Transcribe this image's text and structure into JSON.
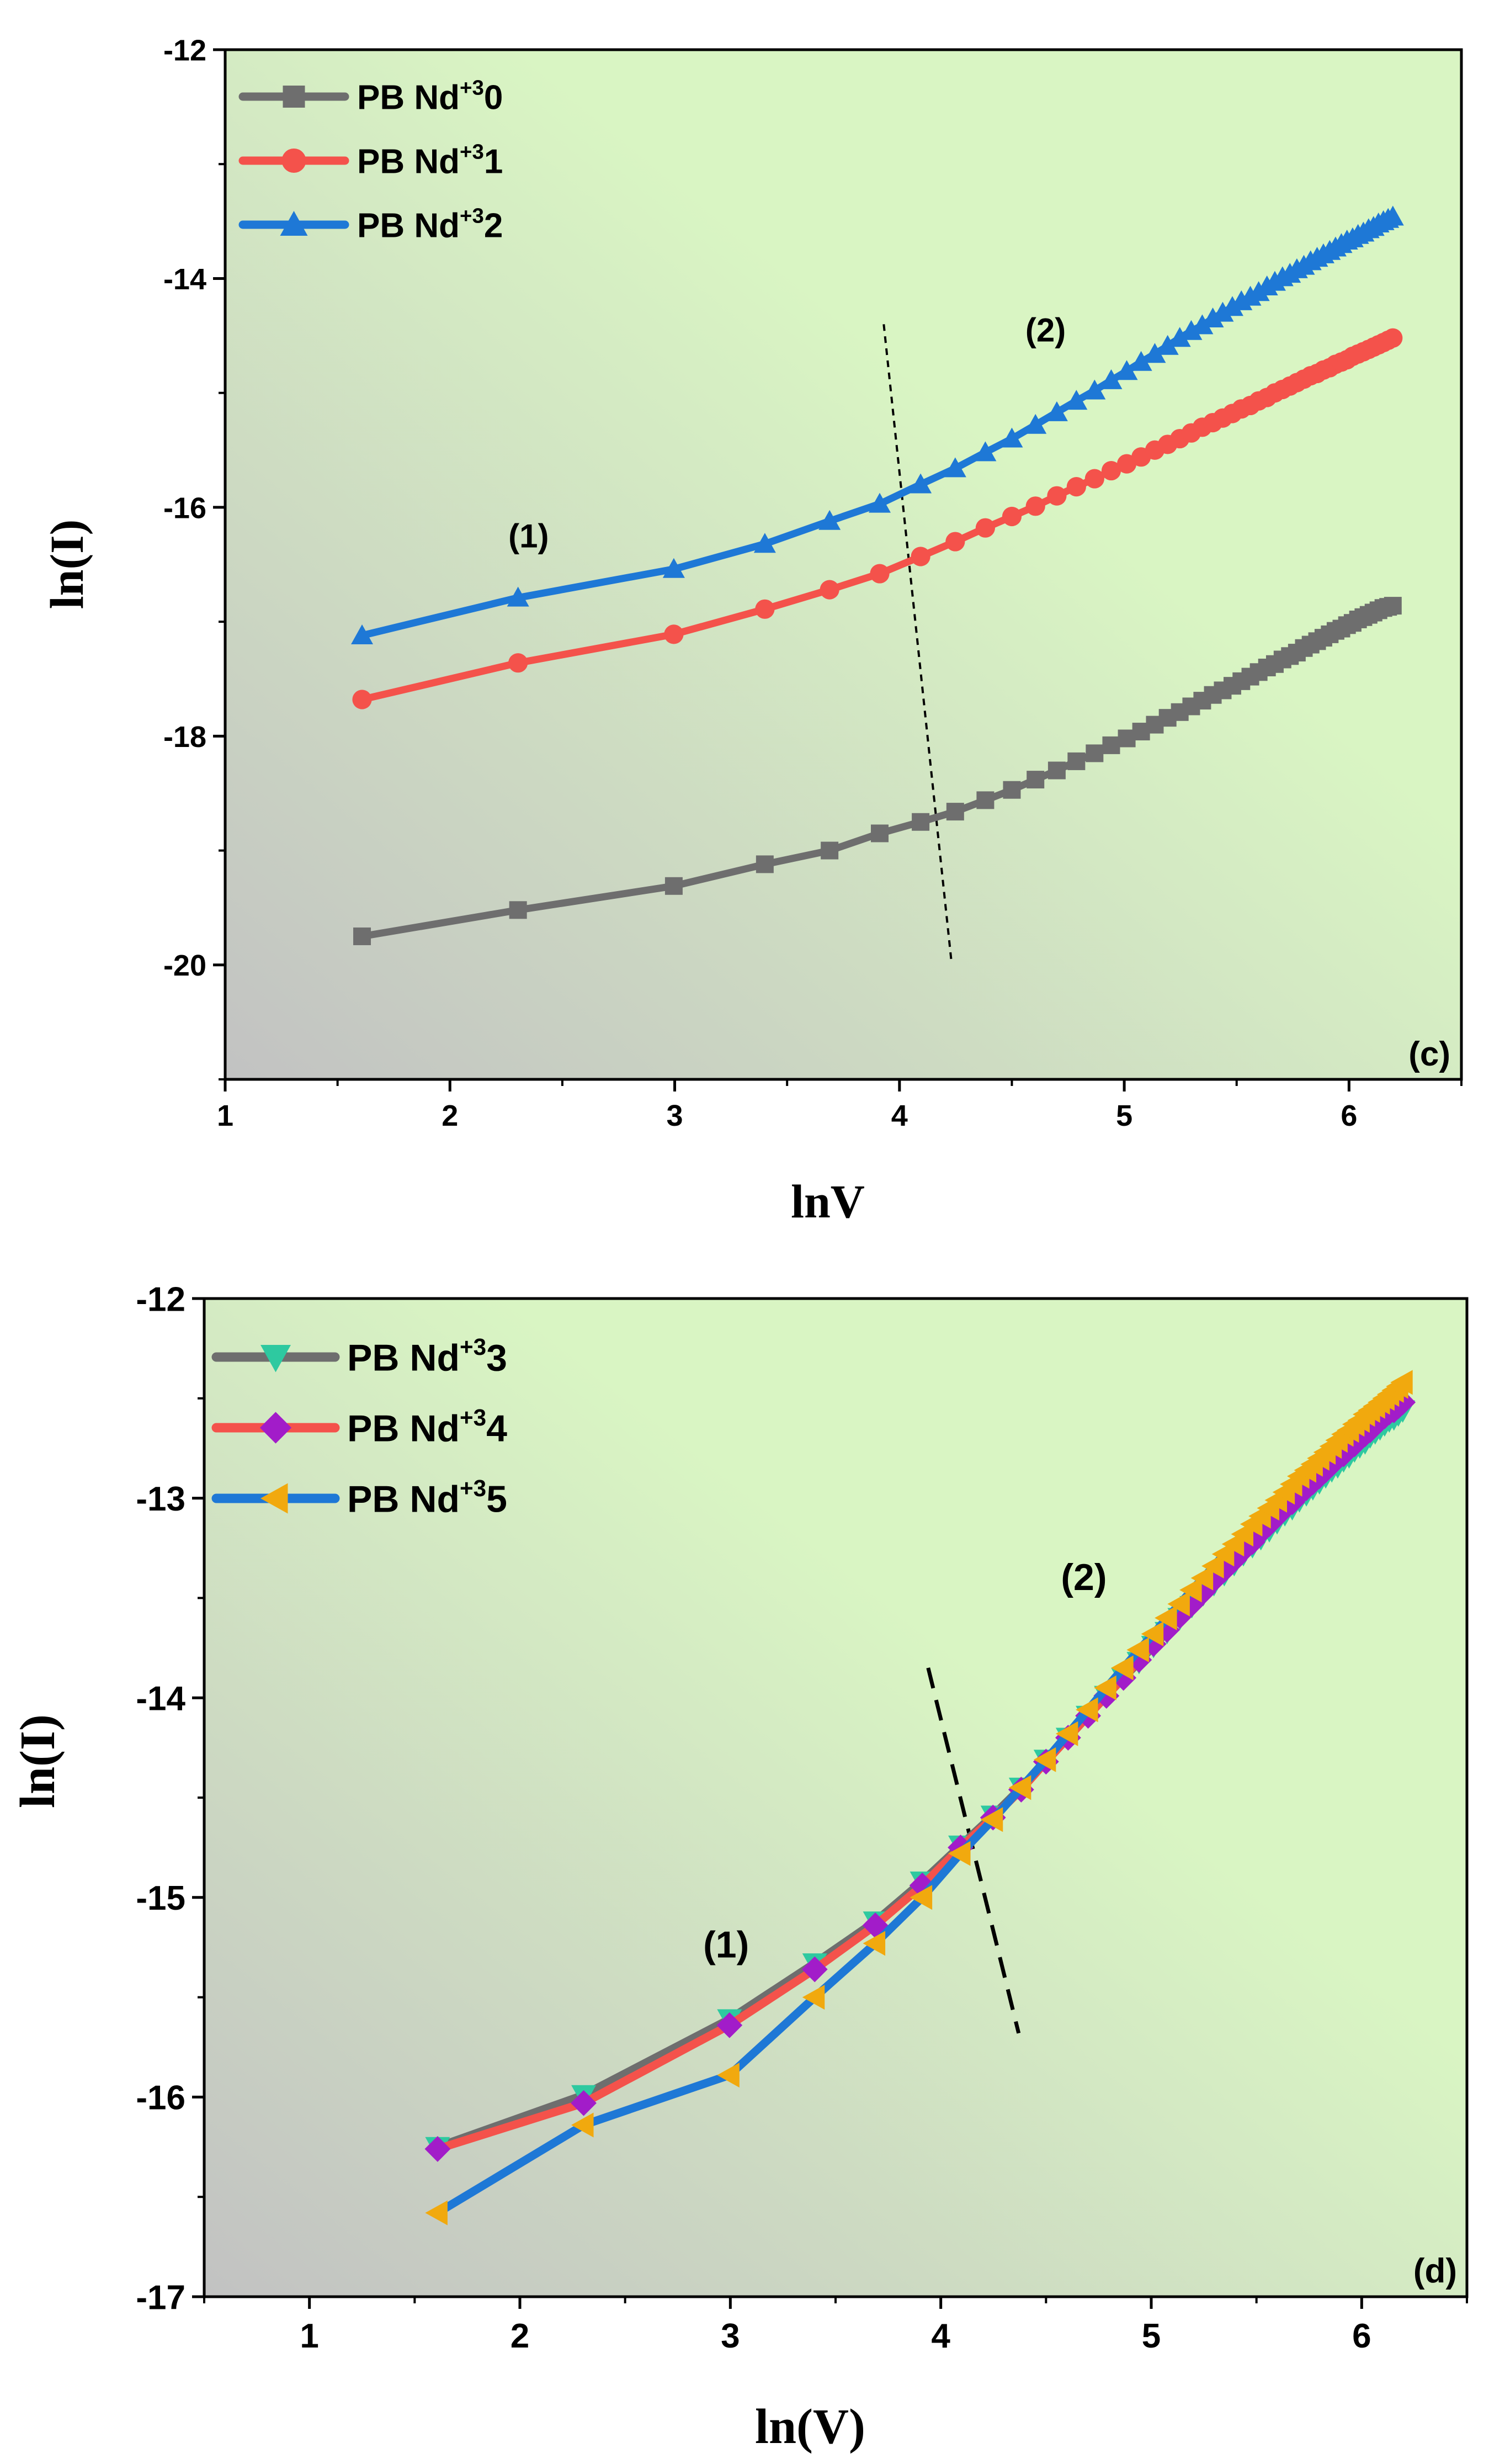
{
  "colors": {
    "plot_bg_start": "#c2c2c2",
    "plot_bg_end": "#d9f5c3",
    "series_gray": "#6e6e6e",
    "series_red": "#f4524b",
    "series_blue": "#1e78d6",
    "marker_teal": "#2ec9a0",
    "marker_purple": "#a21cc9",
    "marker_orange": "#f1a90e",
    "axis": "#000000"
  },
  "chart_data": [
    {
      "type": "line",
      "panel_label": "(c)",
      "xlabel": "lnV",
      "ylabel": "ln(I)",
      "xlim": [
        1,
        6.5
      ],
      "ylim": [
        -21,
        -12
      ],
      "x_ticks": [
        1,
        2,
        3,
        4,
        5,
        6
      ],
      "x_tick_labels": [
        "1",
        "2",
        "3",
        "4",
        "5",
        "6"
      ],
      "y_ticks": [
        -20,
        -18,
        -16,
        -14,
        -12
      ],
      "y_tick_labels": [
        "-20",
        "-18",
        "-16",
        "-14",
        "-12"
      ],
      "legend_position": "top-left",
      "annotations": [
        {
          "text": "(1)",
          "x": 2.35,
          "y": -16.35
        },
        {
          "text": "(2)",
          "x": 4.65,
          "y": -14.55
        }
      ],
      "divider": {
        "x1": 3.93,
        "y1": -14.4,
        "x2": 4.23,
        "y2": -19.95
      },
      "series": [
        {
          "name": "PB Nd+3 0",
          "legend_base": "PB Nd",
          "legend_sup": "+3",
          "legend_num": "0",
          "line_color": "series_gray",
          "marker": "square",
          "marker_color": "series_gray",
          "x": [
            1.609,
            2.303,
            2.996,
            3.401,
            3.689,
            3.912,
            4.094,
            4.248,
            4.382,
            4.5,
            4.605,
            4.7,
            4.787,
            4.868,
            4.942,
            5.011,
            5.075,
            5.136,
            5.193,
            5.247,
            5.298,
            5.347,
            5.394,
            5.438,
            5.481,
            5.521,
            5.561,
            5.598,
            5.635,
            5.67,
            5.704,
            5.737,
            5.768,
            5.799,
            5.829,
            5.858,
            5.886,
            5.914,
            5.94,
            5.966,
            5.991,
            6.016,
            6.04,
            6.064,
            6.087,
            6.109,
            6.131,
            6.153,
            6.174,
            6.195
          ],
          "y": [
            -19.75,
            -19.52,
            -19.31,
            -19.12,
            -19.0,
            -18.85,
            -18.75,
            -18.66,
            -18.56,
            -18.47,
            -18.38,
            -18.3,
            -18.22,
            -18.15,
            -18.08,
            -18.02,
            -17.96,
            -17.9,
            -17.84,
            -17.79,
            -17.74,
            -17.69,
            -17.64,
            -17.6,
            -17.56,
            -17.52,
            -17.48,
            -17.44,
            -17.4,
            -17.37,
            -17.33,
            -17.3,
            -17.27,
            -17.23,
            -17.2,
            -17.17,
            -17.14,
            -17.11,
            -17.08,
            -17.06,
            -17.03,
            -17.01,
            -16.98,
            -16.96,
            -16.94,
            -16.92,
            -16.9,
            -16.88,
            -16.87,
            -16.86
          ]
        },
        {
          "name": "PB Nd+3 1",
          "legend_base": "PB Nd",
          "legend_sup": "+3",
          "legend_num": "1",
          "line_color": "series_red",
          "marker": "circle",
          "marker_color": "series_red",
          "x": [
            1.609,
            2.303,
            2.996,
            3.401,
            3.689,
            3.912,
            4.094,
            4.248,
            4.382,
            4.5,
            4.605,
            4.7,
            4.787,
            4.868,
            4.942,
            5.011,
            5.075,
            5.136,
            5.193,
            5.247,
            5.298,
            5.347,
            5.394,
            5.438,
            5.481,
            5.521,
            5.561,
            5.598,
            5.635,
            5.67,
            5.704,
            5.737,
            5.768,
            5.799,
            5.829,
            5.858,
            5.886,
            5.914,
            5.94,
            5.966,
            5.991,
            6.016,
            6.04,
            6.064,
            6.087,
            6.109,
            6.131,
            6.153,
            6.174,
            6.195
          ],
          "y": [
            -17.68,
            -17.36,
            -17.11,
            -16.89,
            -16.72,
            -16.58,
            -16.43,
            -16.3,
            -16.18,
            -16.08,
            -15.99,
            -15.9,
            -15.82,
            -15.75,
            -15.68,
            -15.62,
            -15.56,
            -15.5,
            -15.45,
            -15.4,
            -15.35,
            -15.3,
            -15.26,
            -15.22,
            -15.18,
            -15.14,
            -15.11,
            -15.07,
            -15.04,
            -15.0,
            -14.97,
            -14.94,
            -14.91,
            -14.88,
            -14.85,
            -14.83,
            -14.8,
            -14.78,
            -14.75,
            -14.73,
            -14.71,
            -14.68,
            -14.66,
            -14.64,
            -14.62,
            -14.6,
            -14.58,
            -14.56,
            -14.54,
            -14.52
          ]
        },
        {
          "name": "PB Nd+3 2",
          "legend_base": "PB Nd",
          "legend_sup": "+3",
          "legend_num": "2",
          "line_color": "series_blue",
          "marker": "triangle-up",
          "marker_color": "series_blue",
          "x": [
            1.609,
            2.303,
            2.996,
            3.401,
            3.689,
            3.912,
            4.094,
            4.248,
            4.382,
            4.5,
            4.605,
            4.7,
            4.787,
            4.868,
            4.942,
            5.011,
            5.075,
            5.136,
            5.193,
            5.247,
            5.298,
            5.347,
            5.394,
            5.438,
            5.481,
            5.521,
            5.561,
            5.598,
            5.635,
            5.67,
            5.704,
            5.737,
            5.768,
            5.799,
            5.829,
            5.858,
            5.886,
            5.914,
            5.94,
            5.966,
            5.991,
            6.016,
            6.04,
            6.064,
            6.087,
            6.109,
            6.131,
            6.153,
            6.174,
            6.195
          ],
          "y": [
            -17.12,
            -16.79,
            -16.54,
            -16.32,
            -16.12,
            -15.97,
            -15.8,
            -15.66,
            -15.52,
            -15.4,
            -15.28,
            -15.17,
            -15.07,
            -14.98,
            -14.89,
            -14.81,
            -14.73,
            -14.66,
            -14.59,
            -14.52,
            -14.46,
            -14.41,
            -14.35,
            -14.3,
            -14.25,
            -14.2,
            -14.16,
            -14.12,
            -14.07,
            -14.03,
            -13.99,
            -13.96,
            -13.92,
            -13.89,
            -13.85,
            -13.82,
            -13.79,
            -13.76,
            -13.73,
            -13.7,
            -13.67,
            -13.65,
            -13.62,
            -13.6,
            -13.57,
            -13.55,
            -13.52,
            -13.5,
            -13.48,
            -13.46
          ]
        }
      ]
    },
    {
      "type": "line",
      "panel_label": "(d)",
      "xlabel": "ln(V)",
      "ylabel": "ln(I)",
      "xlim": [
        0.5,
        6.5
      ],
      "ylim": [
        -17,
        -12
      ],
      "x_ticks": [
        1,
        2,
        3,
        4,
        5,
        6
      ],
      "x_tick_labels": [
        "1",
        "2",
        "3",
        "4",
        "5",
        "6"
      ],
      "y_ticks": [
        -17,
        -16,
        -15,
        -14,
        -13,
        -12
      ],
      "y_tick_labels": [
        "-17",
        "-16",
        "-15",
        "-14",
        "-13",
        "-12"
      ],
      "legend_position": "top-left",
      "annotations": [
        {
          "text": "(1)",
          "x": 2.98,
          "y": -15.3
        },
        {
          "text": "(2)",
          "x": 4.68,
          "y": -13.46
        }
      ],
      "divider": {
        "x1": 3.94,
        "y1": -13.85,
        "x2": 4.37,
        "y2": -15.68
      },
      "series": [
        {
          "name": "PB Nd+3 3",
          "legend_base": "PB Nd",
          "legend_sup": "+3",
          "legend_num": "3",
          "line_color": "series_gray",
          "marker": "triangle-down",
          "marker_color": "marker_teal",
          "x": [
            1.609,
            2.303,
            2.996,
            3.401,
            3.689,
            3.912,
            4.094,
            4.248,
            4.382,
            4.5,
            4.605,
            4.7,
            4.787,
            4.868,
            4.942,
            5.011,
            5.075,
            5.136,
            5.193,
            5.247,
            5.298,
            5.347,
            5.394,
            5.438,
            5.481,
            5.521,
            5.561,
            5.598,
            5.635,
            5.67,
            5.704,
            5.737,
            5.768,
            5.799,
            5.829,
            5.858,
            5.886,
            5.914,
            5.94,
            5.966,
            5.991,
            6.016,
            6.04,
            6.064,
            6.087,
            6.109,
            6.131,
            6.153,
            6.174,
            6.195
          ],
          "y": [
            -16.25,
            -15.99,
            -15.61,
            -15.33,
            -15.12,
            -14.92,
            -14.74,
            -14.59,
            -14.45,
            -14.31,
            -14.2,
            -14.09,
            -13.99,
            -13.9,
            -13.82,
            -13.74,
            -13.67,
            -13.6,
            -13.54,
            -13.48,
            -13.43,
            -13.38,
            -13.33,
            -13.28,
            -13.24,
            -13.2,
            -13.16,
            -13.12,
            -13.08,
            -13.05,
            -13.01,
            -12.98,
            -12.95,
            -12.92,
            -12.89,
            -12.86,
            -12.84,
            -12.81,
            -12.79,
            -12.76,
            -12.74,
            -12.72,
            -12.69,
            -12.67,
            -12.65,
            -12.63,
            -12.61,
            -12.6,
            -12.58,
            -12.56
          ]
        },
        {
          "name": "PB Nd+3 4",
          "legend_base": "PB Nd",
          "legend_sup": "+3",
          "legend_num": "4",
          "line_color": "series_red",
          "marker": "diamond",
          "marker_color": "marker_purple",
          "x": [
            1.609,
            2.303,
            2.996,
            3.401,
            3.689,
            3.912,
            4.094,
            4.248,
            4.382,
            4.5,
            4.605,
            4.7,
            4.787,
            4.868,
            4.942,
            5.011,
            5.075,
            5.136,
            5.193,
            5.247,
            5.298,
            5.347,
            5.394,
            5.438,
            5.481,
            5.521,
            5.561,
            5.598,
            5.635,
            5.67,
            5.704,
            5.737,
            5.768,
            5.799,
            5.829,
            5.858,
            5.886,
            5.914,
            5.94,
            5.966,
            5.991,
            6.016,
            6.04,
            6.064,
            6.087,
            6.109,
            6.131,
            6.153,
            6.174,
            6.195
          ],
          "y": [
            -16.26,
            -16.03,
            -15.64,
            -15.36,
            -15.14,
            -14.94,
            -14.75,
            -14.6,
            -14.46,
            -14.32,
            -14.2,
            -14.09,
            -13.99,
            -13.9,
            -13.81,
            -13.73,
            -13.66,
            -13.59,
            -13.53,
            -13.47,
            -13.41,
            -13.36,
            -13.31,
            -13.26,
            -13.22,
            -13.17,
            -13.13,
            -13.09,
            -13.05,
            -13.02,
            -12.98,
            -12.95,
            -12.92,
            -12.89,
            -12.86,
            -12.83,
            -12.8,
            -12.78,
            -12.75,
            -12.73,
            -12.7,
            -12.68,
            -12.66,
            -12.63,
            -12.61,
            -12.59,
            -12.57,
            -12.56,
            -12.54,
            -12.52
          ]
        },
        {
          "name": "PB Nd+3 5",
          "legend_base": "PB Nd",
          "legend_sup": "+3",
          "legend_num": "5",
          "line_color": "series_blue",
          "marker": "triangle-left",
          "marker_color": "marker_orange",
          "x": [
            1.609,
            2.303,
            2.996,
            3.401,
            3.689,
            3.912,
            4.094,
            4.248,
            4.382,
            4.5,
            4.605,
            4.7,
            4.787,
            4.868,
            4.942,
            5.011,
            5.075,
            5.136,
            5.193,
            5.247,
            5.298,
            5.347,
            5.394,
            5.438,
            5.481,
            5.521,
            5.561,
            5.598,
            5.635,
            5.67,
            5.704,
            5.737,
            5.768,
            5.799,
            5.829,
            5.858,
            5.886,
            5.914,
            5.94,
            5.966,
            5.991,
            6.016,
            6.04,
            6.064,
            6.087,
            6.109,
            6.131,
            6.153,
            6.174,
            6.195
          ],
          "y": [
            -16.58,
            -16.14,
            -15.89,
            -15.5,
            -15.23,
            -15.0,
            -14.78,
            -14.61,
            -14.45,
            -14.31,
            -14.18,
            -14.06,
            -13.95,
            -13.85,
            -13.76,
            -13.68,
            -13.6,
            -13.53,
            -13.46,
            -13.4,
            -13.34,
            -13.28,
            -13.23,
            -13.18,
            -13.13,
            -13.09,
            -13.05,
            -13.01,
            -12.97,
            -12.93,
            -12.89,
            -12.86,
            -12.83,
            -12.8,
            -12.77,
            -12.74,
            -12.71,
            -12.68,
            -12.66,
            -12.63,
            -12.61,
            -12.58,
            -12.56,
            -12.54,
            -12.52,
            -12.5,
            -12.48,
            -12.46,
            -12.44,
            -12.42
          ]
        }
      ]
    }
  ]
}
